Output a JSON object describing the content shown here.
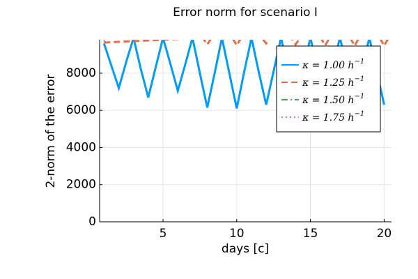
{
  "chart_data": {
    "type": "line",
    "title": "Error norm for scenario I",
    "xlabel": "days [c]",
    "ylabel": "2-norm of the error",
    "xlim": [
      0.7,
      20.5
    ],
    "ylim": [
      0,
      9800
    ],
    "xticks": [
      5,
      10,
      15,
      20
    ],
    "yticks": [
      0,
      2000,
      4000,
      6000,
      8000
    ],
    "grid": true,
    "legend_position": "top-right",
    "series": [
      {
        "name": "κ = 1.00 h⁻¹",
        "color": "#009af9",
        "style": "solid",
        "x": [
          1,
          1.5,
          2,
          2.5,
          3,
          3.5,
          4,
          4.5,
          5,
          5.5,
          6,
          6.5,
          7,
          7.5,
          8,
          8.5,
          9,
          9.5,
          10,
          10.5,
          11,
          11.5,
          12,
          12.5,
          13,
          13.5,
          14,
          14.5,
          15,
          15.5,
          16,
          16.5,
          17,
          17.5,
          18,
          18.5,
          19,
          19.5,
          20
        ],
        "y": [
          9600,
          8400,
          7200,
          8600,
          9900,
          8200,
          6700,
          8300,
          9900,
          8500,
          7050,
          8450,
          9900,
          8000,
          6150,
          8000,
          9900,
          8000,
          6100,
          8050,
          9900,
          8050,
          6300,
          8100,
          9900,
          8200,
          6500,
          8250,
          9900,
          8200,
          6600,
          8300,
          9900,
          8300,
          6800,
          8400,
          9900,
          8100,
          6300
        ]
      },
      {
        "name": "κ = 1.25 h⁻¹",
        "color": "#e26f46",
        "style": "dashed",
        "x": [
          1,
          7.7,
          8,
          8.3,
          9.7,
          10,
          10.3,
          11.7,
          12,
          12.3,
          13.7,
          14,
          14.3,
          15.7,
          16,
          16.3,
          17.7,
          18,
          18.3,
          19.7,
          20,
          20.3
        ],
        "y": [
          9650,
          9900,
          9550,
          9900,
          9900,
          9500,
          9900,
          9900,
          9600,
          9900,
          9900,
          9550,
          9900,
          9900,
          9500,
          9900,
          9900,
          9480,
          9900,
          9900,
          9480,
          9900
        ]
      },
      {
        "name": "κ = 1.50 h⁻¹",
        "color": "#3da44d",
        "style": "dashdot",
        "x": [],
        "y": []
      },
      {
        "name": "κ = 1.75 h⁻¹",
        "color": "#c271d2",
        "style": "dotted",
        "x": [
          1,
          1.1
        ],
        "y": [
          9700,
          9800
        ]
      }
    ],
    "legend_entries": [
      {
        "prefix": "κ = 1.00 h",
        "exp": "−1"
      },
      {
        "prefix": "κ = 1.25 h",
        "exp": "−1"
      },
      {
        "prefix": "κ = 1.50 h",
        "exp": "−1"
      },
      {
        "prefix": "κ = 1.75 h",
        "exp": "−1"
      }
    ]
  }
}
